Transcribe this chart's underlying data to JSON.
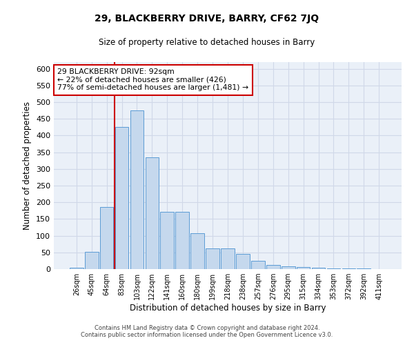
{
  "title": "29, BLACKBERRY DRIVE, BARRY, CF62 7JQ",
  "subtitle": "Size of property relative to detached houses in Barry",
  "xlabel": "Distribution of detached houses by size in Barry",
  "ylabel": "Number of detached properties",
  "categories": [
    "26sqm",
    "45sqm",
    "64sqm",
    "83sqm",
    "103sqm",
    "122sqm",
    "141sqm",
    "160sqm",
    "180sqm",
    "199sqm",
    "218sqm",
    "238sqm",
    "257sqm",
    "276sqm",
    "295sqm",
    "315sqm",
    "334sqm",
    "353sqm",
    "372sqm",
    "392sqm",
    "411sqm"
  ],
  "values": [
    5,
    52,
    185,
    425,
    475,
    335,
    172,
    172,
    107,
    62,
    62,
    45,
    24,
    12,
    9,
    6,
    4,
    3,
    2,
    2,
    1
  ],
  "bar_color": "#c5d8ed",
  "bar_edge_color": "#5b9bd5",
  "annotation_title": "29 BLACKBERRY DRIVE: 92sqm",
  "annotation_line1": "← 22% of detached houses are smaller (426)",
  "annotation_line2": "77% of semi-detached houses are larger (1,481) →",
  "annotation_box_color": "#ffffff",
  "annotation_box_edge": "#cc0000",
  "vline_color": "#cc0000",
  "vline_index": 3,
  "grid_color": "#d0d8e8",
  "bg_color": "#eaf0f8",
  "footer_line1": "Contains HM Land Registry data © Crown copyright and database right 2024.",
  "footer_line2": "Contains public sector information licensed under the Open Government Licence v3.0.",
  "ylim": [
    0,
    620
  ],
  "yticks": [
    0,
    50,
    100,
    150,
    200,
    250,
    300,
    350,
    400,
    450,
    500,
    550,
    600
  ]
}
